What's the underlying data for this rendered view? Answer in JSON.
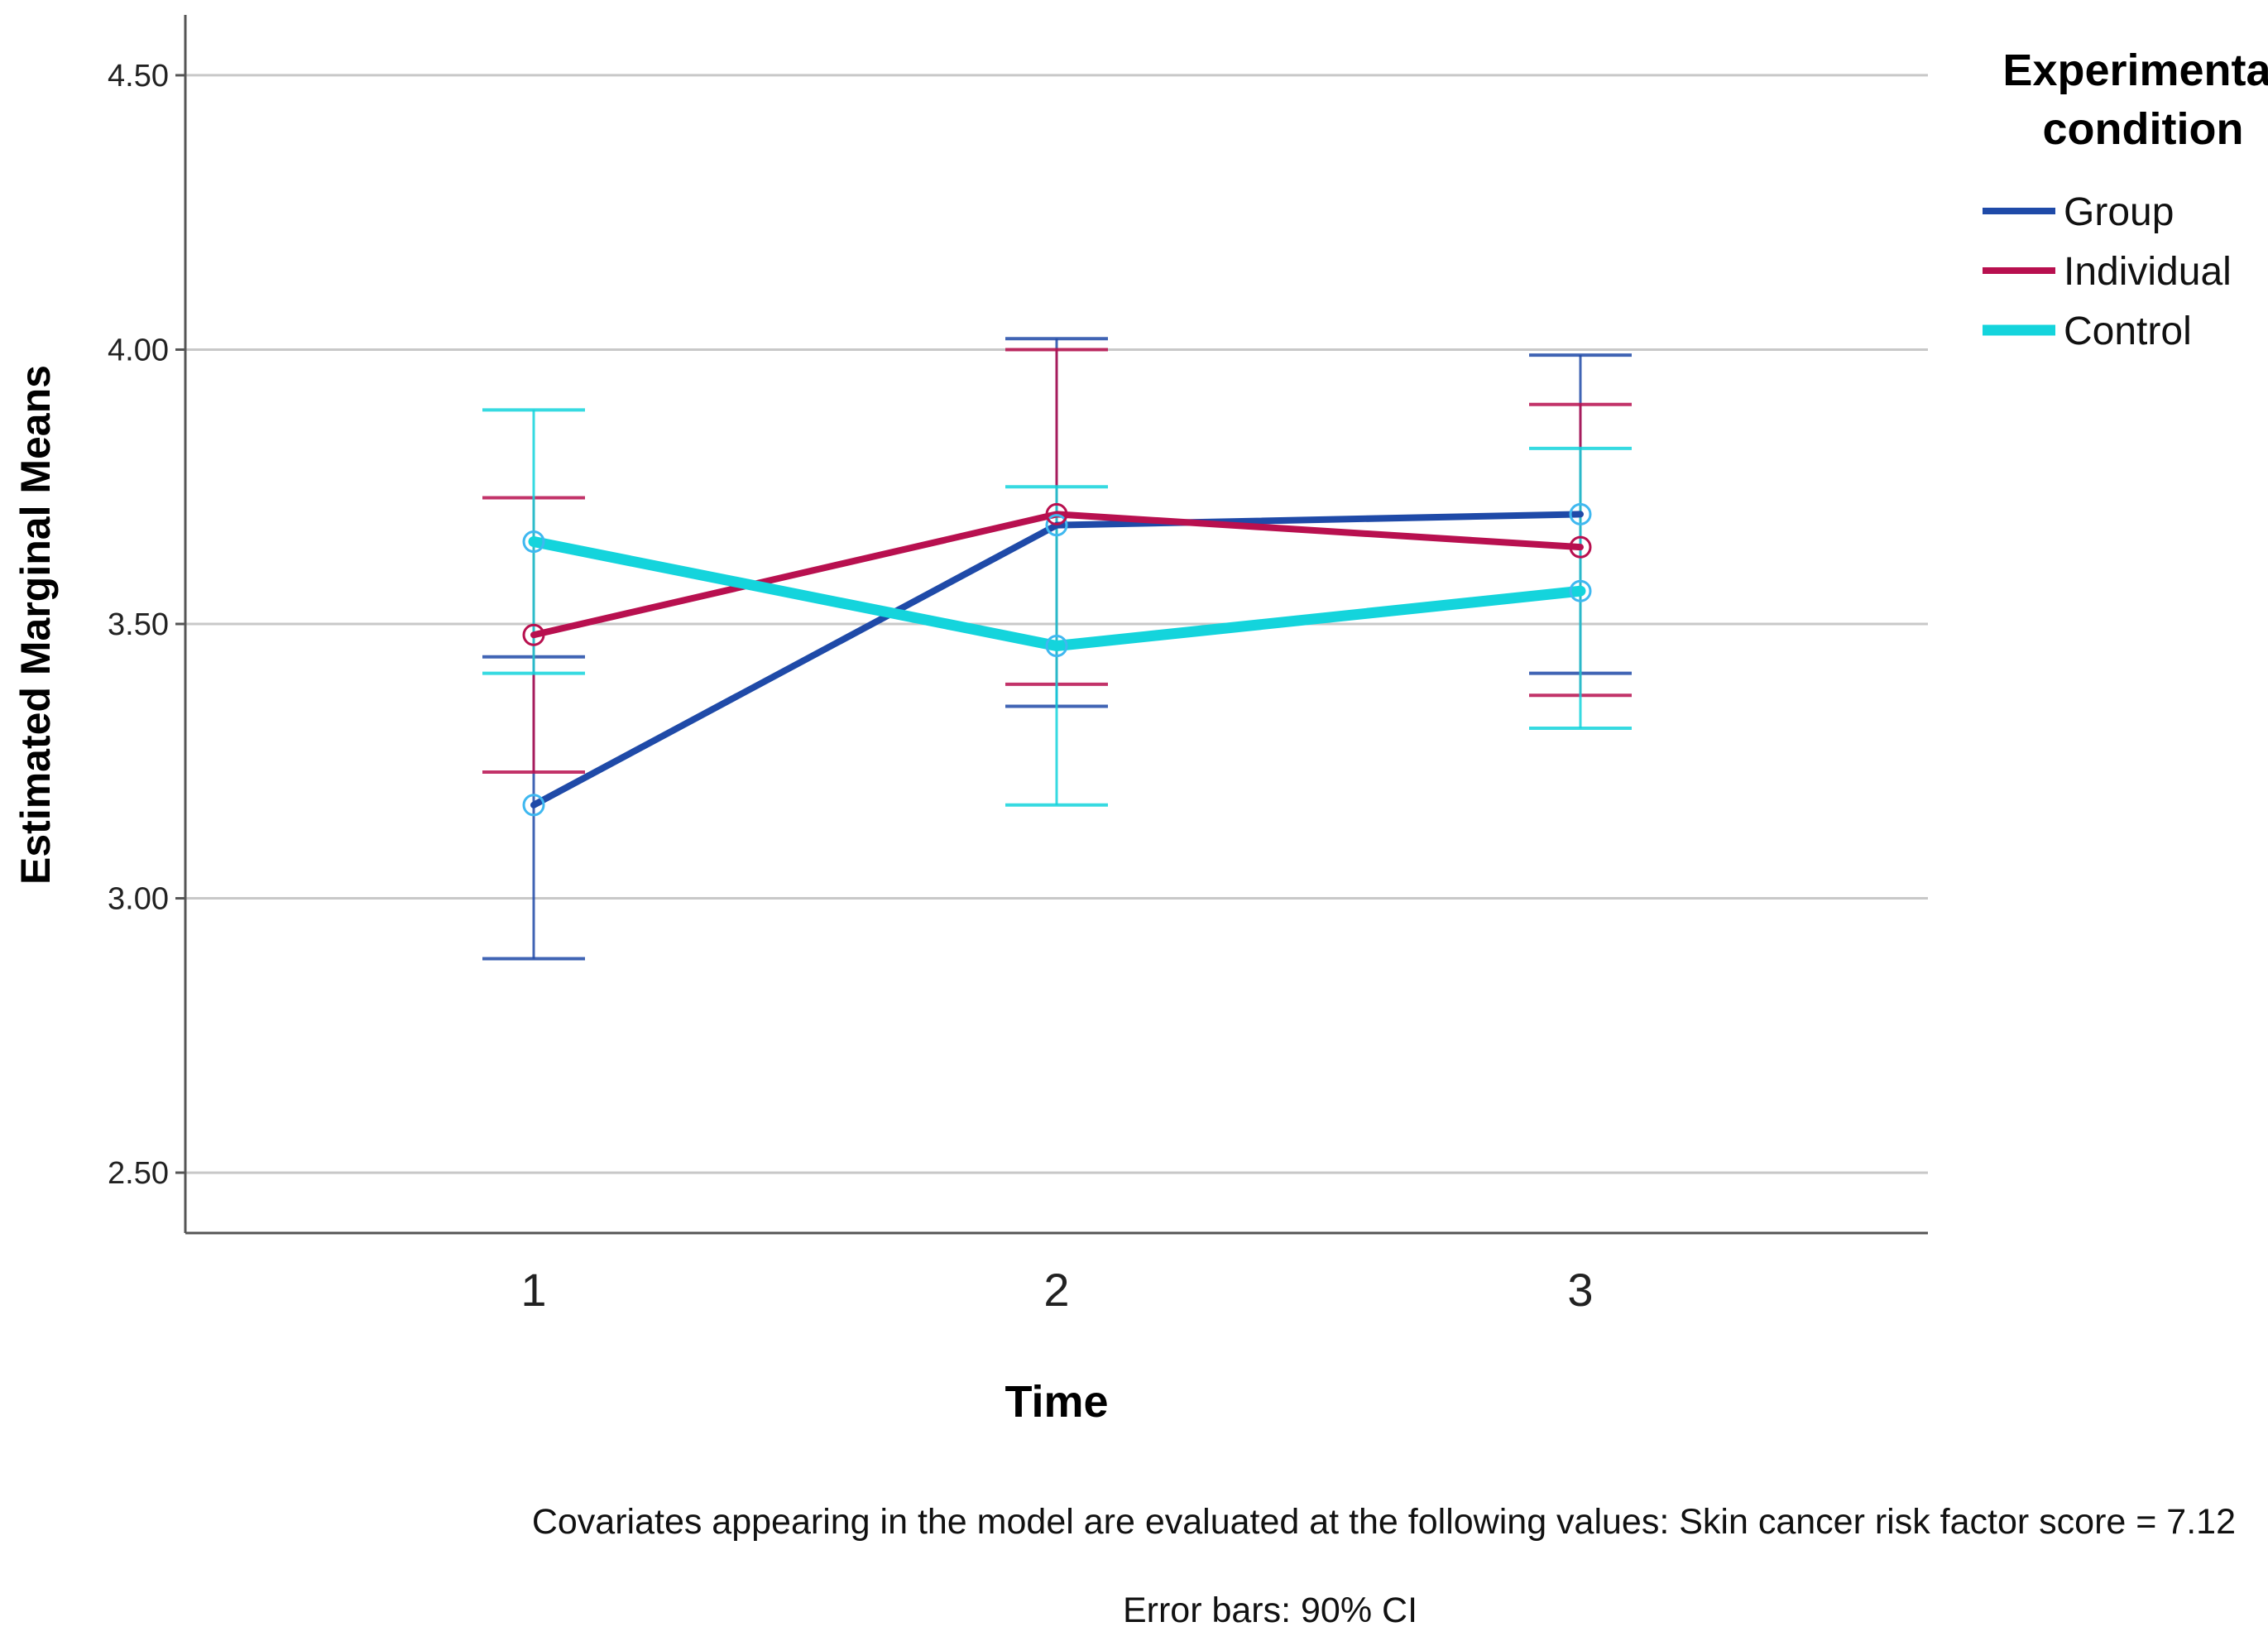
{
  "chart_data": {
    "type": "line",
    "title": "",
    "xlabel": "Time",
    "ylabel": "Estimated Marginal Means",
    "categories": [
      "1",
      "2",
      "3"
    ],
    "ylim": [
      2.39,
      4.61
    ],
    "yticks": [
      2.5,
      3.0,
      3.5,
      4.0,
      4.5
    ],
    "ytick_labels": [
      "2.50",
      "3.00",
      "3.50",
      "4.00",
      "4.50"
    ],
    "grid": "horizontal",
    "legend": {
      "title_lines": [
        "Experimental",
        "condition"
      ],
      "placement": "top-right"
    },
    "series": [
      {
        "name": "Group",
        "color": "#1f4aa8",
        "values": [
          3.17,
          3.68,
          3.7
        ],
        "ci_low": [
          2.89,
          3.35,
          3.41
        ],
        "ci_high": [
          3.44,
          4.02,
          3.99
        ]
      },
      {
        "name": "Individual",
        "color": "#b8104f",
        "values": [
          3.48,
          3.7,
          3.64
        ],
        "ci_low": [
          3.23,
          3.39,
          3.37
        ],
        "ci_high": [
          3.73,
          4.0,
          3.9
        ]
      },
      {
        "name": "Control",
        "color": "#14d4dc",
        "values": [
          3.65,
          3.46,
          3.56
        ],
        "ci_low": [
          3.41,
          3.17,
          3.31
        ],
        "ci_high": [
          3.89,
          3.75,
          3.82
        ]
      }
    ],
    "notes": [
      "Covariates appearing in the model are evaluated at the following values: Skin cancer risk factor score = 7.12",
      "Error bars: 90% CI"
    ]
  }
}
